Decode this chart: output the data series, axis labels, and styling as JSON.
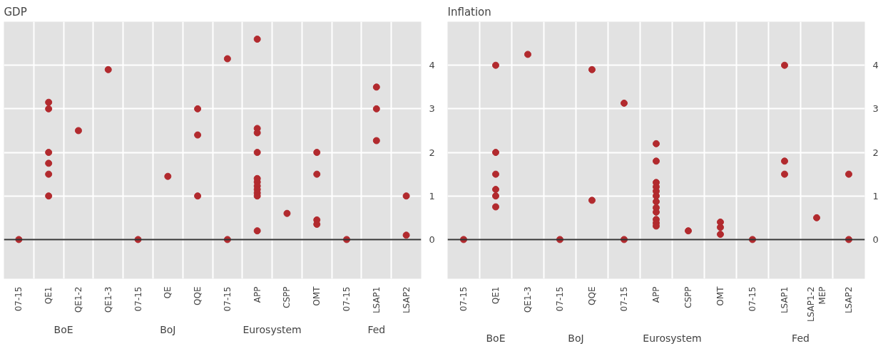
{
  "chart_data": [
    {
      "type": "scatter",
      "title": "GDP",
      "categories": [
        "07-15",
        "QE1",
        "QE1-2",
        "QE1-3",
        "07-15",
        "QE",
        "QQE",
        "07-15",
        "APP",
        "CSPP",
        "OMT",
        "07-15",
        "LSAP1",
        "LSAP2"
      ],
      "ylim": [
        -0.9,
        5
      ],
      "yticks": [
        0,
        1,
        2,
        3,
        4
      ],
      "grid": true,
      "marker": "circle",
      "ref_lines": [
        {
          "axis": "y",
          "value": 0,
          "label": null,
          "color": "#333333"
        }
      ],
      "annotations": [
        "BoE",
        "BoJ",
        "Eurosystem",
        "Fed"
      ],
      "series": [
        {
          "color": "#b22a2e",
          "values": [
            0,
            3.15,
            2.5,
            3.9,
            0,
            1.45,
            3.0,
            4.15,
            4.6,
            0.6,
            2.0,
            0,
            3.5,
            1.0
          ]
        },
        {
          "color": "#b22a2e",
          "values": [
            null,
            3.0,
            null,
            null,
            null,
            null,
            2.4,
            0,
            2.55,
            null,
            1.5,
            null,
            3.0,
            0.1
          ]
        },
        {
          "color": "#b22a2e",
          "values": [
            null,
            2.0,
            null,
            null,
            null,
            null,
            1.0,
            null,
            2.45,
            null,
            0.45,
            null,
            2.27,
            null
          ]
        },
        {
          "color": "#b22a2e",
          "values": [
            null,
            1.75,
            null,
            null,
            null,
            null,
            null,
            null,
            2.0,
            null,
            0.35,
            null,
            null,
            null
          ]
        },
        {
          "color": "#b22a2e",
          "values": [
            null,
            1.5,
            null,
            null,
            null,
            null,
            null,
            null,
            1.4,
            null,
            null,
            null,
            null,
            null
          ]
        },
        {
          "color": "#b22a2e",
          "values": [
            null,
            1.0,
            null,
            null,
            null,
            null,
            null,
            null,
            1.32,
            null,
            null,
            null,
            null,
            null
          ]
        },
        {
          "color": "#b22a2e",
          "values": [
            null,
            null,
            null,
            null,
            null,
            null,
            null,
            null,
            1.23,
            null,
            null,
            null,
            null,
            null
          ]
        },
        {
          "color": "#b22a2e",
          "values": [
            null,
            null,
            null,
            null,
            null,
            null,
            null,
            null,
            1.15,
            null,
            null,
            null,
            null,
            null
          ]
        },
        {
          "color": "#b22a2e",
          "values": [
            null,
            null,
            null,
            null,
            null,
            null,
            null,
            null,
            1.07,
            null,
            null,
            null,
            null,
            null
          ]
        },
        {
          "color": "#b22a2e",
          "values": [
            null,
            null,
            null,
            null,
            null,
            null,
            null,
            null,
            1.0,
            null,
            null,
            null,
            null,
            null
          ]
        },
        {
          "color": "#b22a2e",
          "values": [
            null,
            null,
            null,
            null,
            null,
            null,
            null,
            null,
            0.2,
            null,
            null,
            null,
            null,
            null
          ]
        }
      ]
    },
    {
      "type": "scatter",
      "title": "Inflation",
      "categories": [
        "07-15",
        "QE1",
        "QE1-3",
        "07-15",
        "QQE",
        "07-15",
        "APP",
        "CSPP",
        "OMT",
        "07-15",
        "LSAP1",
        "LSAP1-2 MEP",
        "LSAP2"
      ],
      "ylim": [
        -0.9,
        5
      ],
      "yticks": [
        0,
        1,
        2,
        3,
        4
      ],
      "grid": true,
      "marker": "circle",
      "ref_lines": [
        {
          "axis": "y",
          "value": 0,
          "label": null,
          "color": "#333333"
        }
      ],
      "annotations": [
        "BoE",
        "BoJ",
        "Eurosystem",
        "Fed"
      ],
      "series": [
        {
          "color": "#b22a2e",
          "values": [
            0,
            4.0,
            4.25,
            0,
            3.9,
            3.13,
            2.2,
            0.2,
            0.4,
            0,
            4.0,
            0.5,
            1.5
          ]
        },
        {
          "color": "#b22a2e",
          "values": [
            null,
            2.0,
            null,
            null,
            0.9,
            0,
            1.8,
            null,
            0.28,
            null,
            1.8,
            null,
            0
          ]
        },
        {
          "color": "#b22a2e",
          "values": [
            null,
            1.5,
            null,
            null,
            null,
            null,
            1.31,
            null,
            0.12,
            null,
            1.5,
            null,
            null
          ]
        },
        {
          "color": "#b22a2e",
          "values": [
            null,
            1.15,
            null,
            null,
            null,
            null,
            1.21,
            null,
            null,
            null,
            null,
            null,
            null
          ]
        },
        {
          "color": "#b22a2e",
          "values": [
            null,
            1.0,
            null,
            null,
            null,
            null,
            1.11,
            null,
            null,
            null,
            null,
            null,
            null
          ]
        },
        {
          "color": "#b22a2e",
          "values": [
            null,
            0.75,
            null,
            null,
            null,
            null,
            1.0,
            null,
            null,
            null,
            null,
            null,
            null
          ]
        },
        {
          "color": "#b22a2e",
          "values": [
            null,
            null,
            null,
            null,
            null,
            null,
            0.87,
            null,
            null,
            null,
            null,
            null,
            null
          ]
        },
        {
          "color": "#b22a2e",
          "values": [
            null,
            null,
            null,
            null,
            null,
            null,
            0.73,
            null,
            null,
            null,
            null,
            null,
            null
          ]
        },
        {
          "color": "#b22a2e",
          "values": [
            null,
            null,
            null,
            null,
            null,
            null,
            0.63,
            null,
            null,
            null,
            null,
            null,
            null
          ]
        },
        {
          "color": "#b22a2e",
          "values": [
            null,
            null,
            null,
            null,
            null,
            null,
            0.46,
            null,
            null,
            null,
            null,
            null,
            null
          ]
        },
        {
          "color": "#b22a2e",
          "values": [
            null,
            null,
            null,
            null,
            null,
            null,
            0.38,
            null,
            null,
            null,
            null,
            null,
            null
          ]
        },
        {
          "color": "#b22a2e",
          "values": [
            null,
            null,
            null,
            null,
            null,
            null,
            0.31,
            null,
            null,
            null,
            null,
            null,
            null
          ]
        }
      ]
    }
  ]
}
